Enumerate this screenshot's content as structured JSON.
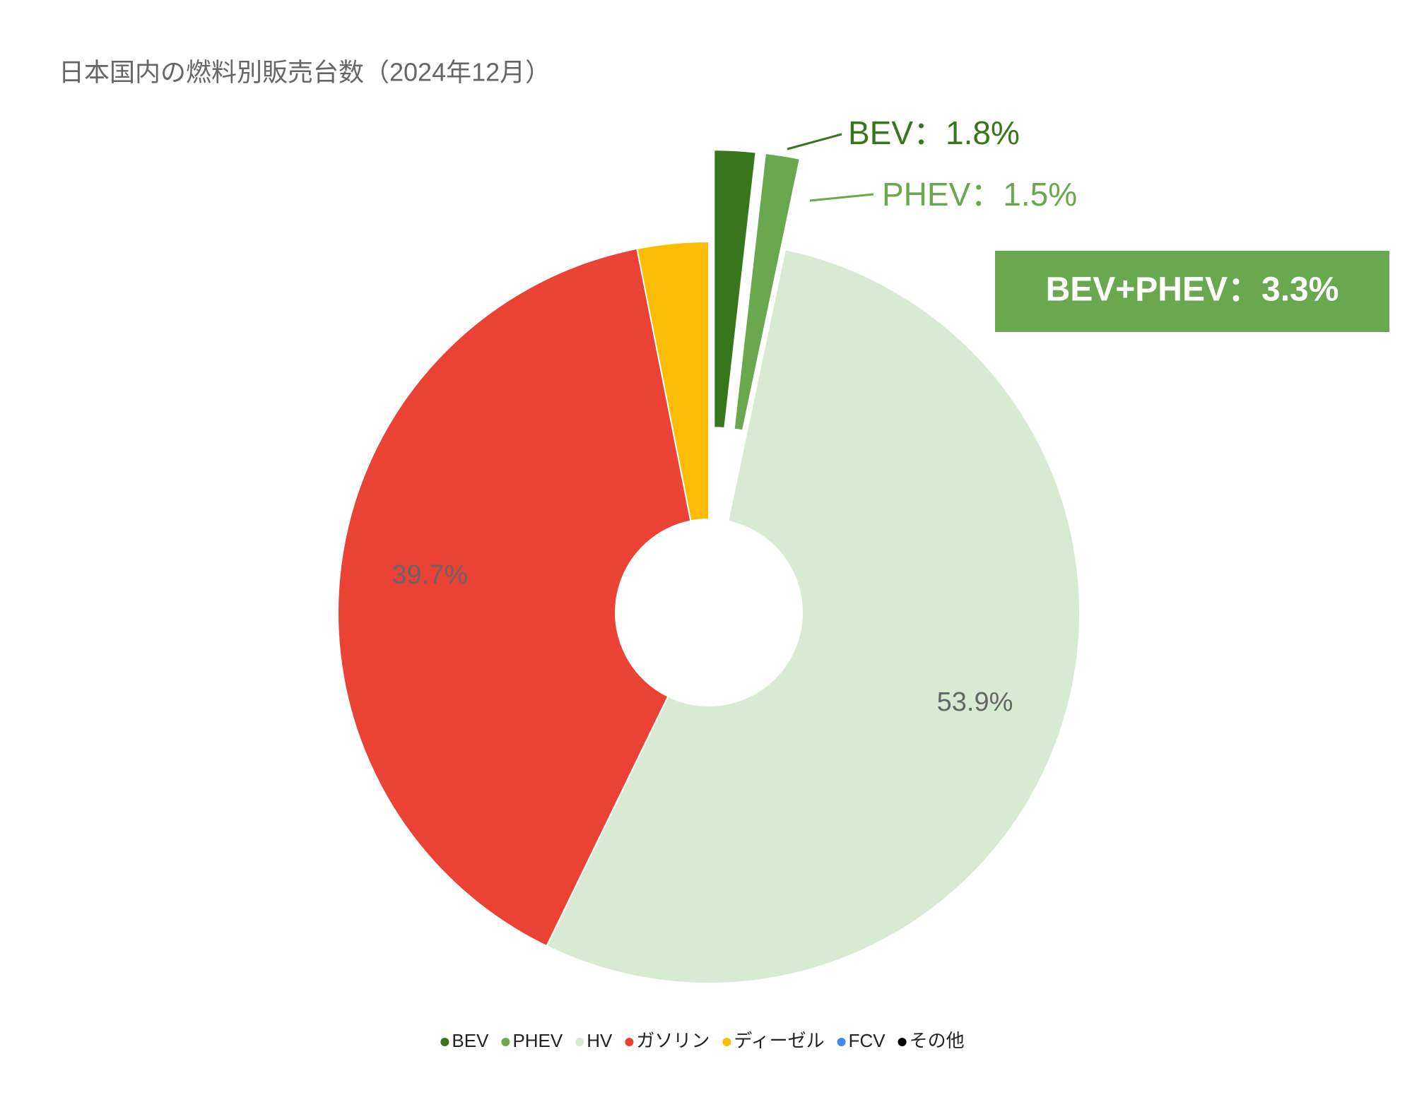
{
  "chart_data": {
    "type": "pie",
    "title": "日本国内の燃料別販売台数（2024年12月）",
    "categories": [
      "BEV",
      "PHEV",
      "HV",
      "ガソリン",
      "ディーゼル",
      "FCV",
      "その他"
    ],
    "values": [
      1.8,
      1.5,
      53.9,
      39.7,
      3.1,
      0,
      0
    ],
    "value_labels": [
      "BEV：1.8%",
      "PHEV：1.5%",
      "53.9%",
      "39.7%",
      null,
      null,
      null
    ],
    "colors": [
      "#38761d",
      "#6aa84f",
      "#d9ead3",
      "#ea4335",
      "#fbbc04",
      "#4285f4",
      "#000000"
    ],
    "exploded": [
      true,
      true,
      false,
      false,
      false,
      false,
      false
    ],
    "annotation": "BEV+PHEV：3.3%",
    "legend": "bottom"
  }
}
